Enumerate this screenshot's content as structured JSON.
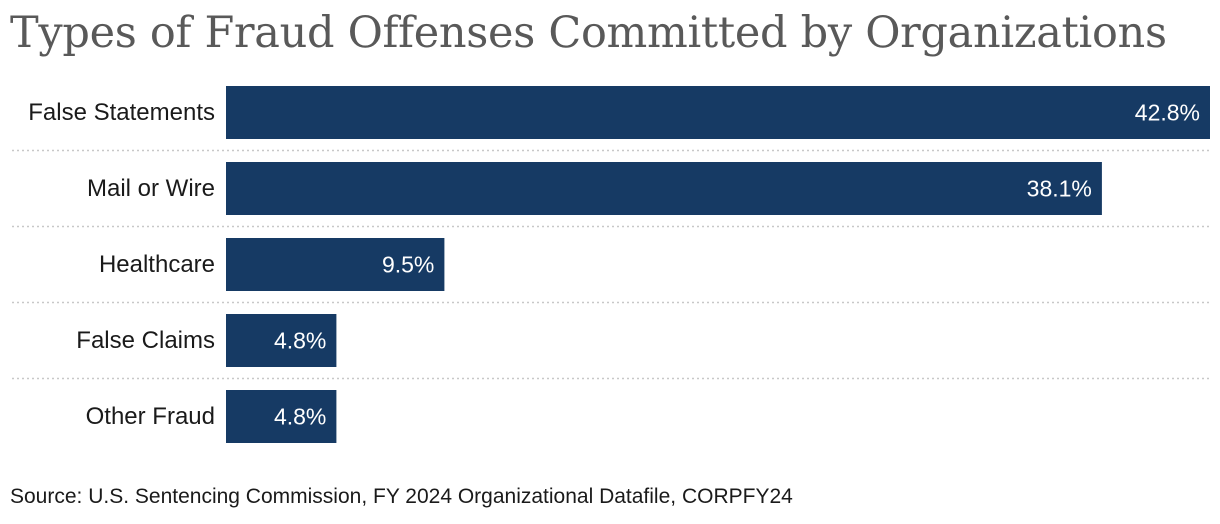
{
  "colors": {
    "bar": "#163a64",
    "value_text": "#ffffff",
    "separator": "#c8c8c8"
  },
  "source": "Source: U.S. Sentencing Commission, FY 2024 Organizational Datafile, CORPFY24",
  "chart_data": {
    "type": "bar",
    "orientation": "horizontal",
    "title": "Types of Fraud Offenses Committed by Organizations",
    "categories": [
      "False Statements",
      "Mail or Wire",
      "Healthcare",
      "False Claims",
      "Other Fraud"
    ],
    "values": [
      42.8,
      38.1,
      9.5,
      4.8,
      4.8
    ],
    "value_labels": [
      "42.8%",
      "38.1%",
      "9.5%",
      "4.8%",
      "4.8%"
    ],
    "unit": "%",
    "xlim": [
      0,
      42.8
    ],
    "grid": false,
    "legend": "none"
  }
}
